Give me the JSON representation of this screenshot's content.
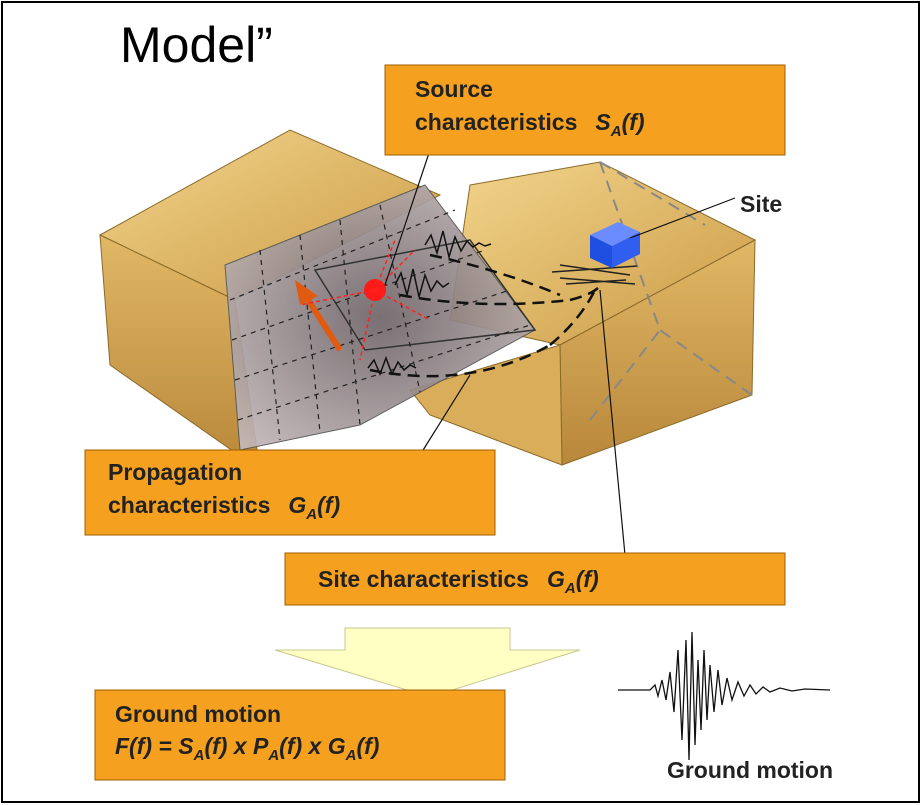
{
  "title": "Model”",
  "source": {
    "line1": "Source",
    "line2": "characteristics",
    "symbol": "S",
    "sub": "A",
    "arg": "(f)"
  },
  "site": "Site",
  "propagation": {
    "line1": "Propagation",
    "line2": "characteristics",
    "symbol": "G",
    "sub": "A",
    "arg": "(f)"
  },
  "site_characteristics": {
    "text": "Site characteristics",
    "symbol": "G",
    "sub": "A",
    "arg": "(f)"
  },
  "ground_motion_box": {
    "line1": "Ground motion",
    "formula": [
      "F(f) = S",
      "A",
      "(f) x P",
      "A",
      "(f) x G",
      "A",
      "(f)"
    ]
  },
  "ground_motion_caption": "Ground motion"
}
